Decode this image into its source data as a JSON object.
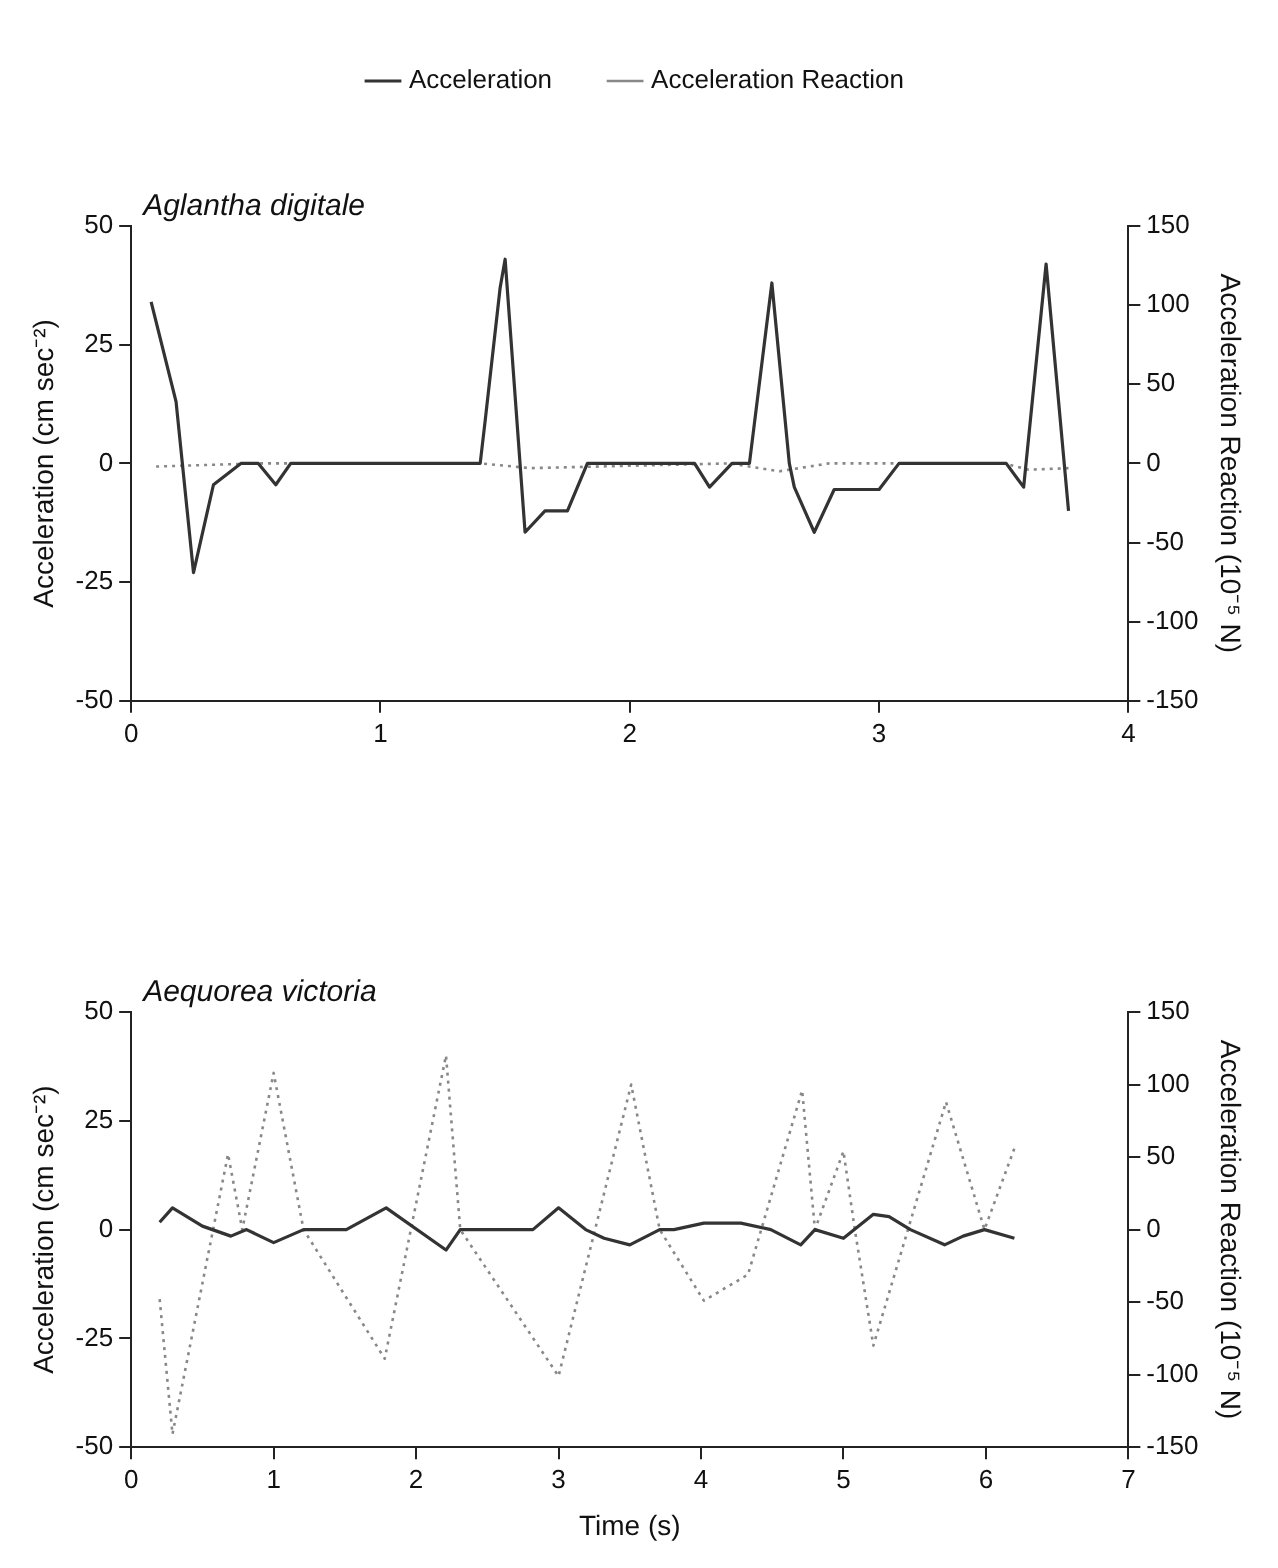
{
  "chart_data": [
    {
      "type": "line",
      "title": "Aglantha digitale",
      "ylabel": "Acceleration (cm sec⁻²)",
      "y2label": "Acceleration Reaction (10⁻⁵ N)",
      "xlim": [
        0,
        4
      ],
      "xticks": [
        0,
        1,
        2,
        3,
        4
      ],
      "ylim": [
        -50,
        50
      ],
      "yticks": [
        -50,
        -25,
        0,
        25,
        50
      ],
      "y2lim": [
        -150,
        150
      ],
      "y2ticks": [
        -150,
        -100,
        -50,
        0,
        50,
        100,
        150
      ],
      "grid": false,
      "legend": "top",
      "marker": "none",
      "series": [
        {
          "name": "Acceleration",
          "color": "#333333",
          "line_style": "solid",
          "x": [
            0.08,
            0.18,
            0.25,
            0.33,
            0.44,
            0.51,
            0.58,
            0.64,
            1.4,
            1.42,
            1.48,
            1.5,
            1.58,
            1.66,
            1.75,
            1.83,
            2.26,
            2.32,
            2.41,
            2.48,
            2.57,
            2.64,
            2.66,
            2.74,
            2.82,
            3.0,
            3.08,
            3.51,
            3.58,
            3.67,
            3.76
          ],
          "values": [
            34,
            13,
            -23,
            -4.5,
            0,
            0,
            -4.5,
            0,
            0,
            9,
            37,
            43,
            -14.5,
            -10,
            -10,
            0,
            0,
            -5,
            0,
            0,
            38,
            0,
            -5,
            -14.5,
            -5.5,
            -5.5,
            0,
            0,
            -5,
            42,
            -10
          ]
        },
        {
          "name": "Acceleration Reaction",
          "color": "#888888",
          "line_style": "dotted",
          "axis": "y2",
          "x": [
            0.1,
            0.5,
            1.4,
            1.6,
            2.4,
            2.6,
            2.8,
            3.5,
            3.6,
            3.76
          ],
          "values": [
            -2,
            0,
            0,
            -3,
            0,
            -5,
            0,
            0,
            -4,
            -3
          ]
        }
      ]
    },
    {
      "type": "line",
      "title": "Aequorea victoria",
      "xlabel": "Time (s)",
      "ylabel": "Acceleration (cm sec⁻²)",
      "y2label": "Acceleration Reaction (10⁻⁵ N)",
      "xlim": [
        0,
        7
      ],
      "xticks": [
        0,
        1,
        2,
        3,
        4,
        5,
        6,
        7
      ],
      "ylim": [
        -50,
        50
      ],
      "yticks": [
        -50,
        -25,
        0,
        25,
        50
      ],
      "y2lim": [
        -150,
        150
      ],
      "y2ticks": [
        -150,
        -100,
        -50,
        0,
        50,
        100,
        150
      ],
      "grid": false,
      "legend": false,
      "marker": "none",
      "series": [
        {
          "color": "#333333",
          "line_style": "solid",
          "x": [
            0.2,
            0.29,
            0.5,
            0.7,
            0.81,
            1.0,
            1.21,
            1.51,
            1.79,
            2.21,
            2.31,
            2.82,
            3.0,
            3.19,
            3.32,
            3.5,
            3.71,
            3.81,
            4.02,
            4.28,
            4.49,
            4.7,
            4.8,
            5.0,
            5.21,
            5.32,
            5.47,
            5.71,
            5.84,
            5.99,
            6.2
          ],
          "values": [
            1.7,
            5,
            0.8,
            -1.5,
            0,
            -3,
            0,
            0,
            5,
            -4.7,
            0,
            0,
            5,
            0,
            -2,
            -3.5,
            0,
            0,
            1.5,
            1.5,
            0,
            -3.5,
            0,
            -2,
            3.5,
            3,
            0,
            -3.5,
            -1.5,
            0,
            -2
          ]
        },
        {
          "color": "#888888",
          "line_style": "dotted",
          "axis": "y2",
          "x": [
            0.2,
            0.29,
            0.68,
            0.78,
            1.0,
            1.21,
            1.78,
            2.21,
            2.31,
            3.0,
            3.51,
            3.71,
            4.02,
            4.33,
            4.71,
            4.8,
            5.0,
            5.08,
            5.21,
            5.72,
            5.99,
            6.2
          ],
          "values": [
            -48,
            -141,
            52,
            0,
            108,
            0,
            -89,
            120,
            0,
            -101,
            100,
            0,
            -49,
            -31,
            96,
            0,
            54,
            0,
            -80,
            88,
            0,
            56
          ]
        }
      ]
    }
  ]
}
